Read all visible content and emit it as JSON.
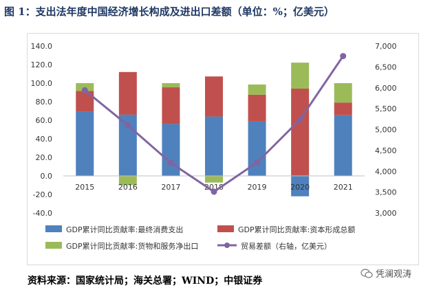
{
  "header": {
    "title": "图 1：支出法年度中国经济增长构成及进出口差额（单位：%；亿美元）"
  },
  "chart_data": {
    "type": "bar",
    "stacked": true,
    "categories": [
      "2015",
      "2016",
      "2017",
      "2018",
      "2019",
      "2020",
      "2021"
    ],
    "series": [
      {
        "name": "GDP累计同比贡献率:最终消费支出",
        "axis": "left",
        "color": "#4f81bd",
        "values": [
          69.0,
          66.0,
          56.0,
          64.0,
          58.6,
          -22.0,
          65.4
        ]
      },
      {
        "name": "GDP累计同比贡献率:资本形成总额",
        "axis": "left",
        "color": "#c0504d",
        "values": [
          22.6,
          46.0,
          39.5,
          43.2,
          28.9,
          94.1,
          13.7
        ]
      },
      {
        "name": "GDP累计同比贡献率:货物和服务净出口",
        "axis": "left",
        "color": "#9bbb59",
        "values": [
          8.4,
          -10.0,
          4.5,
          -7.2,
          11.0,
          28.0,
          20.9
        ]
      }
    ],
    "line": {
      "name": "贸易差额（右轴，亿美元）",
      "axis": "right",
      "color": "#8064a2",
      "values": [
        5940,
        5100,
        4200,
        3510,
        4210,
        5240,
        6760
      ]
    },
    "left_axis": {
      "min": -40,
      "max": 140,
      "step": 20,
      "ticks": [
        "-40.0",
        "-20.0",
        "0.0",
        "20.0",
        "40.0",
        "60.0",
        "80.0",
        "100.0",
        "120.0",
        "140.0"
      ]
    },
    "right_axis": {
      "min": 3000,
      "max": 7000,
      "step": 500,
      "ticks": [
        "3,000",
        "3,500",
        "4,000",
        "4,500",
        "5,000",
        "5,500",
        "6,000",
        "6,500",
        "7,000"
      ]
    },
    "legend": [
      {
        "label": "GDP累计同比贡献率:最终消费支出",
        "kind": "box",
        "color": "#4f81bd"
      },
      {
        "label": "GDP累计同比贡献率:资本形成总额",
        "kind": "box",
        "color": "#c0504d"
      },
      {
        "label": "GDP累计同比贡献率:货物和服务净出口",
        "kind": "box",
        "color": "#9bbb59"
      },
      {
        "label": "贸易差额（右轴，亿美元）",
        "kind": "line",
        "color": "#8064a2"
      }
    ],
    "legend_position": "bottom",
    "grid": false
  },
  "footer": {
    "source": "资料来源：国家统计局；海关总署；WIND；中银证券",
    "watermark": "凭澜观涛"
  }
}
